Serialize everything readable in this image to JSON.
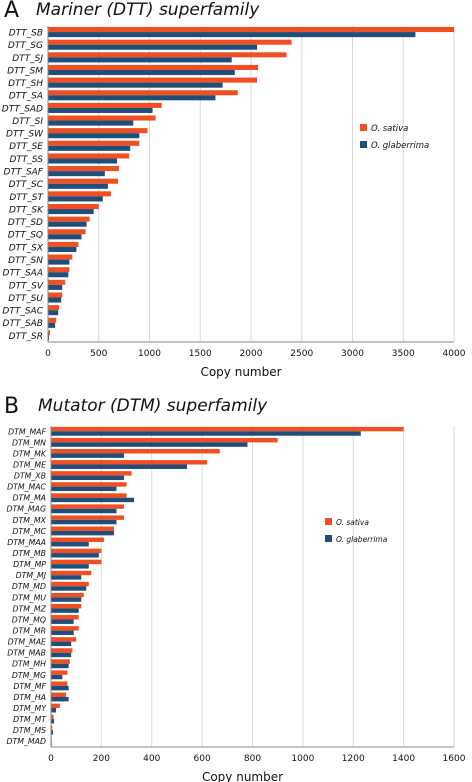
{
  "colors": {
    "O_sativa": "#f04e23",
    "O_glaberrima": "#1f4e79",
    "grid": "#d9d9d9",
    "axis": "#888888"
  },
  "panel_a": {
    "letter": "A",
    "title": "Mariner (DTT) superfamily"
  },
  "panel_b": {
    "letter": "B",
    "title": "Mutator (DTM) superfamily"
  },
  "chart_data": [
    {
      "type": "bar",
      "orientation": "horizontal",
      "title": "Mariner (DTT) superfamily",
      "xlabel": "Copy number",
      "ylabel": "",
      "xlim": [
        0,
        4000
      ],
      "xticks": [
        0,
        500,
        1000,
        1500,
        2000,
        2500,
        3000,
        3500,
        4000
      ],
      "grid": true,
      "legend_position": "right",
      "categories": [
        "DTT_SB",
        "DTT_SG",
        "DTT_SJ",
        "DTT_SM",
        "DTT_SH",
        "DTT_SA",
        "DTT_SAD",
        "DTT_SI",
        "DTT_SW",
        "DTT_SE",
        "DTT_SS",
        "DTT_SAF",
        "DTT_SC",
        "DTT_ST",
        "DTT_SK",
        "DTT_SD",
        "DTT_SQ",
        "DTT_SX",
        "DTT_SN",
        "DTT_SAA",
        "DTT_SV",
        "DTT_SU",
        "DTT_SAC",
        "DTT_SAB",
        "DTT_SR"
      ],
      "series": [
        {
          "name": "O. sativa",
          "values": [
            4000,
            2400,
            2350,
            2070,
            2060,
            1870,
            1120,
            1060,
            980,
            900,
            800,
            700,
            690,
            620,
            500,
            410,
            370,
            300,
            240,
            210,
            170,
            140,
            110,
            80,
            20
          ]
        },
        {
          "name": "O. glaberrima",
          "values": [
            3620,
            2060,
            1810,
            1840,
            1720,
            1650,
            1030,
            840,
            900,
            810,
            680,
            560,
            590,
            540,
            450,
            380,
            330,
            280,
            210,
            200,
            140,
            130,
            100,
            70,
            10
          ]
        }
      ]
    },
    {
      "type": "bar",
      "orientation": "horizontal",
      "title": "Mutator (DTM) superfamily",
      "xlabel": "Copy number",
      "ylabel": "",
      "xlim": [
        0,
        1600
      ],
      "xticks": [
        0,
        200,
        400,
        600,
        800,
        1000,
        1200,
        1400,
        1600
      ],
      "grid": true,
      "legend_position": "right",
      "categories": [
        "DTM_MAF",
        "DTM_MN",
        "DTM_MK",
        "DTM_ME",
        "DTM_XB",
        "DTM_MAC",
        "DTM_MA",
        "DTM_MAG",
        "DTM_MX",
        "DTM_MC",
        "DTM_MAA",
        "DTM_MB",
        "DTM_MP",
        "DTM_MJ",
        "DTM_MD",
        "DTM_MU",
        "DTM_MZ",
        "DTM_MQ",
        "DTM_MR",
        "DTM_MAE",
        "DTM_MAB",
        "DTM_MH",
        "DTM_MG",
        "DTM_MF",
        "DTM_HA",
        "DTM_MY",
        "DTM_MT",
        "DTM_MS",
        "DTM_MAD"
      ],
      "series": [
        {
          "name": "O. sativa",
          "values": [
            1400,
            900,
            670,
            620,
            320,
            300,
            300,
            290,
            290,
            250,
            210,
            200,
            200,
            160,
            150,
            130,
            120,
            110,
            110,
            100,
            85,
            75,
            65,
            65,
            60,
            35,
            10,
            5,
            3
          ]
        },
        {
          "name": "O. glaberrima",
          "values": [
            1230,
            780,
            290,
            540,
            290,
            260,
            330,
            260,
            260,
            250,
            150,
            190,
            150,
            120,
            140,
            120,
            110,
            90,
            90,
            80,
            80,
            70,
            45,
            70,
            70,
            20,
            12,
            8,
            3
          ]
        }
      ]
    }
  ]
}
